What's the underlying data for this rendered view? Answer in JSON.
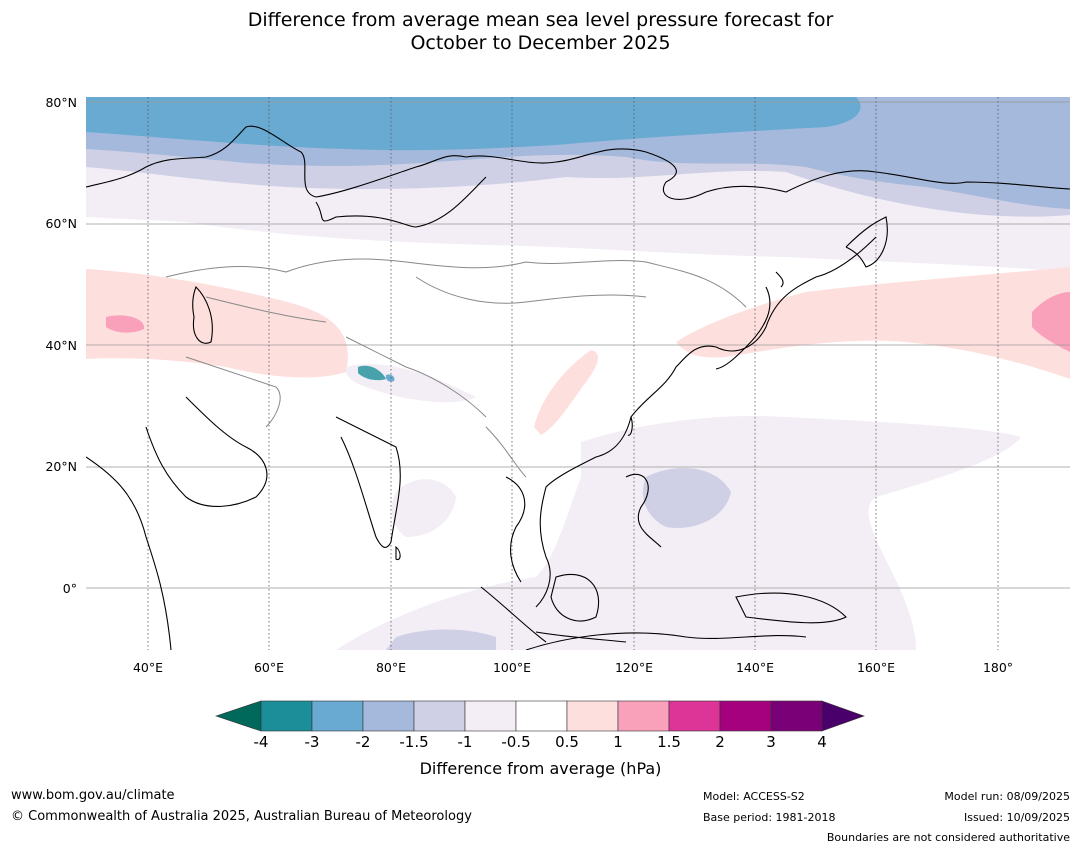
{
  "title_line1": "Difference from average mean sea level pressure forecast for",
  "title_line2": "October to December 2025",
  "lat_labels": [
    "80°N",
    "60°N",
    "40°N",
    "20°N",
    "0°"
  ],
  "lon_labels": [
    "40°E",
    "60°E",
    "80°E",
    "100°E",
    "120°E",
    "140°E",
    "160°E",
    "180°"
  ],
  "colorbar": {
    "title": "Difference from average (hPa)",
    "ticks": [
      "-4",
      "-3",
      "-2",
      "-1.5",
      "-1",
      "-0.5",
      "0.5",
      "1",
      "1.5",
      "2",
      "3",
      "4"
    ],
    "colors": {
      "below": "#00695c",
      "c1": "#1b8e99",
      "c2": "#69aad2",
      "c3": "#a4b9db",
      "c4": "#cfd0e5",
      "c5": "#f3edf5",
      "c6": "#ffffff",
      "c7": "#fde0de",
      "c8": "#f9a0bb",
      "c9": "#dc3497",
      "c10": "#a5007e",
      "c11": "#790077",
      "above": "#49006a"
    }
  },
  "footer": {
    "website": "www.bom.gov.au/climate",
    "copyright": "© Commonwealth of Australia 2025, Australian Bureau of Meteorology",
    "model": "Model: ACCESS-S2",
    "base_period": "Base period: 1981-2018",
    "model_run": "Model run: 08/09/2025",
    "issued": "Issued: 10/09/2025",
    "disclaimer": "Boundaries are not considered authoritative"
  }
}
